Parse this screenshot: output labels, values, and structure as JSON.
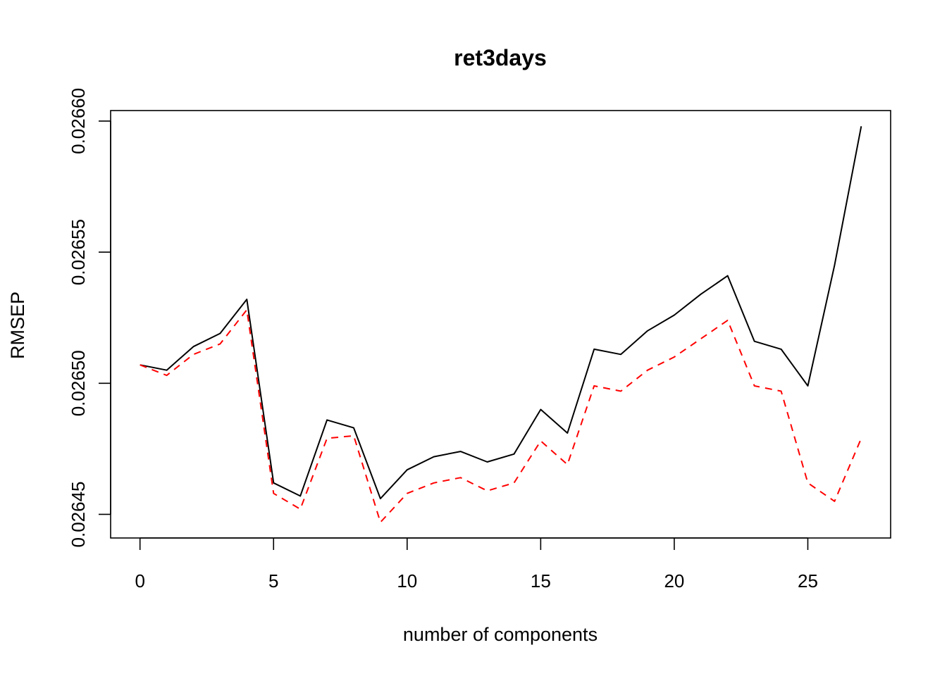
{
  "chart_data": {
    "type": "line",
    "title": "ret3days",
    "xlabel": "number of components",
    "ylabel": "RMSEP",
    "xlim": [
      -1.1,
      28.1
    ],
    "ylim": [
      0.026441,
      0.026604
    ],
    "x_ticks": [
      0,
      5,
      10,
      15,
      20,
      25
    ],
    "x_tick_labels": [
      "0",
      "5",
      "10",
      "15",
      "20",
      "25"
    ],
    "y_ticks": [
      0.02645,
      0.0265,
      0.02655,
      0.0266
    ],
    "y_tick_labels": [
      "0.02645",
      "0.02650",
      "0.02655",
      "0.02660"
    ],
    "grid": false,
    "legend": "none",
    "x": [
      0,
      1,
      2,
      3,
      4,
      5,
      6,
      7,
      8,
      9,
      10,
      11,
      12,
      13,
      14,
      15,
      16,
      17,
      18,
      19,
      20,
      21,
      22,
      23,
      24,
      25,
      26,
      27
    ],
    "series": [
      {
        "color": "#000000",
        "dash": "solid",
        "values": [
          0.026507,
          0.026505,
          0.026514,
          0.026519,
          0.026532,
          0.026462,
          0.026457,
          0.026486,
          0.026483,
          0.026456,
          0.026467,
          0.026472,
          0.026474,
          0.02647,
          0.026473,
          0.02649,
          0.026481,
          0.026513,
          0.026511,
          0.02652,
          0.026526,
          0.026534,
          0.026541,
          0.026516,
          0.026513,
          0.026499,
          0.026545,
          0.026598
        ]
      },
      {
        "color": "#ff0000",
        "dash": "dashed",
        "values": [
          0.026507,
          0.026503,
          0.026511,
          0.026515,
          0.026528,
          0.026458,
          0.026452,
          0.026479,
          0.02648,
          0.026447,
          0.026458,
          0.026462,
          0.026464,
          0.026459,
          0.026462,
          0.026478,
          0.026469,
          0.026499,
          0.026497,
          0.026505,
          0.02651,
          0.026517,
          0.026524,
          0.026499,
          0.026497,
          0.026462,
          0.026455,
          0.026479
        ]
      }
    ]
  }
}
